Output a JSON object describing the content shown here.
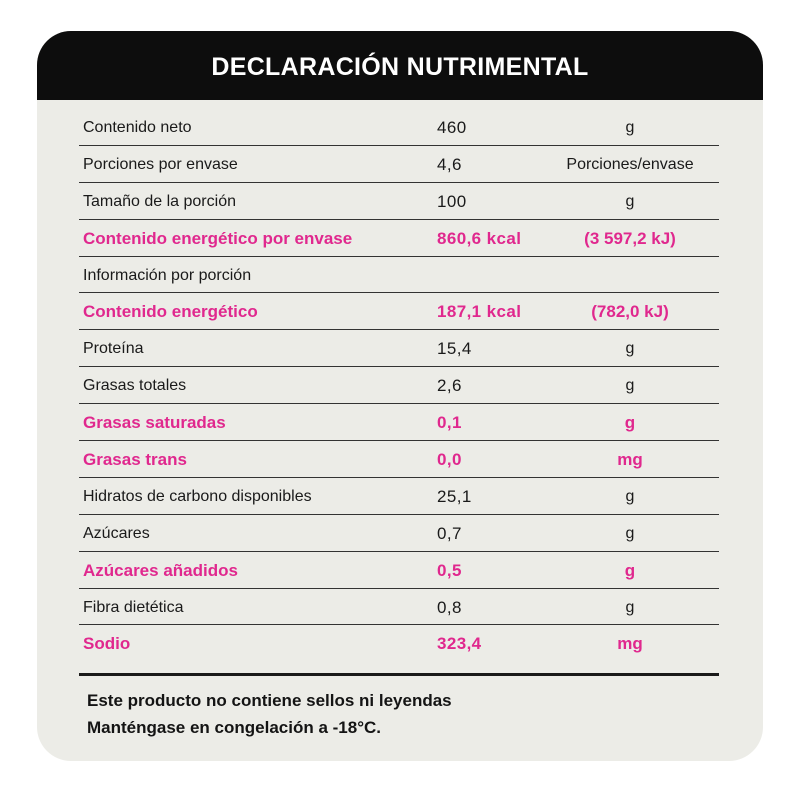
{
  "title": "DECLARACIÓN NUTRIMENTAL",
  "rows": [
    {
      "label": "Contenido neto",
      "value": "460",
      "unit": "g"
    },
    {
      "label": "Porciones por envase",
      "value": "4,6",
      "unit": "Porciones/envase"
    },
    {
      "label": "Tamaño de la porción",
      "value": "100",
      "unit": "g"
    },
    {
      "label": "Contenido energético por envase",
      "value": "860,6 kcal",
      "unit": "(3 597,2 kJ)"
    },
    {
      "label": "Información por porción",
      "value": "",
      "unit": ""
    },
    {
      "label": "Contenido energético",
      "value": "187,1 kcal",
      "unit": "(782,0 kJ)"
    },
    {
      "label": "Proteína",
      "value": "15,4",
      "unit": "g"
    },
    {
      "label": "Grasas totales",
      "value": "2,6",
      "unit": "g"
    },
    {
      "label": "Grasas saturadas",
      "value": "0,1",
      "unit": "g"
    },
    {
      "label": "Grasas trans",
      "value": "0,0",
      "unit": "mg"
    },
    {
      "label": "Hidratos de carbono disponibles",
      "value": "25,1",
      "unit": "g"
    },
    {
      "label": "Azúcares",
      "value": "0,7",
      "unit": "g"
    },
    {
      "label": "Azúcares añadidos",
      "value": "0,5",
      "unit": "g"
    },
    {
      "label": "Fibra dietética",
      "value": "0,8",
      "unit": "g"
    },
    {
      "label": "Sodio",
      "value": "323,4",
      "unit": "mg"
    }
  ],
  "footer": {
    "line1": "Este producto no contiene sellos ni leyendas",
    "line2": "Manténgase en congelación a -18°C."
  },
  "colors": {
    "highlight": "#e0288e",
    "header_bg": "#0d0d0d",
    "panel_bg": "#ececE7"
  }
}
